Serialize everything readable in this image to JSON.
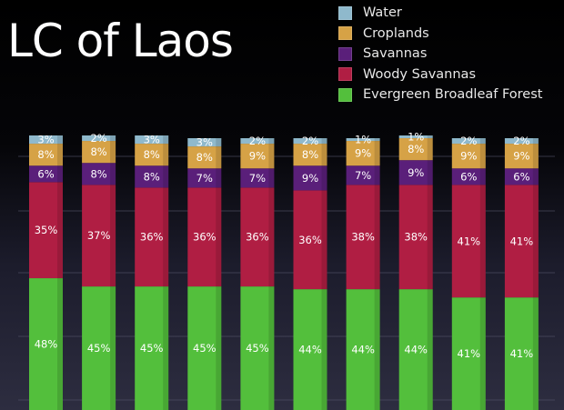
{
  "title": "LC of Laos",
  "colors": {
    "Water": "#8fb9cc",
    "Croplands": "#d6a246",
    "Savannas": "#5a1f7a",
    "Woody Savannas": "#b01e43",
    "Evergreen Broadleaf Forest": "#53bf3c"
  },
  "chart_data": {
    "type": "bar",
    "stacked": true,
    "title": "LC of Laos",
    "xlabel": "",
    "ylabel": "",
    "ylim": [
      0,
      100
    ],
    "categories": [
      "",
      "",
      "",
      "",
      "",
      "",
      "",
      "",
      "",
      ""
    ],
    "legend": [
      "Water",
      "Croplands",
      "Savannas",
      "Woody Savannas",
      "Evergreen Broadleaf Forest"
    ],
    "legend_position": "top-right",
    "series": [
      {
        "name": "Evergreen Broadleaf Forest",
        "values": [
          48,
          45,
          45,
          45,
          45,
          44,
          44,
          44,
          41,
          41
        ]
      },
      {
        "name": "Woody Savannas",
        "values": [
          35,
          37,
          36,
          36,
          36,
          36,
          38,
          38,
          41,
          41
        ]
      },
      {
        "name": "Savannas",
        "values": [
          6,
          8,
          8,
          7,
          7,
          9,
          7,
          9,
          6,
          6
        ]
      },
      {
        "name": "Croplands",
        "values": [
          8,
          8,
          8,
          8,
          9,
          8,
          9,
          8,
          9,
          9
        ]
      },
      {
        "name": "Water",
        "values": [
          3,
          2,
          3,
          3,
          2,
          2,
          1,
          1,
          2,
          2
        ]
      }
    ]
  }
}
